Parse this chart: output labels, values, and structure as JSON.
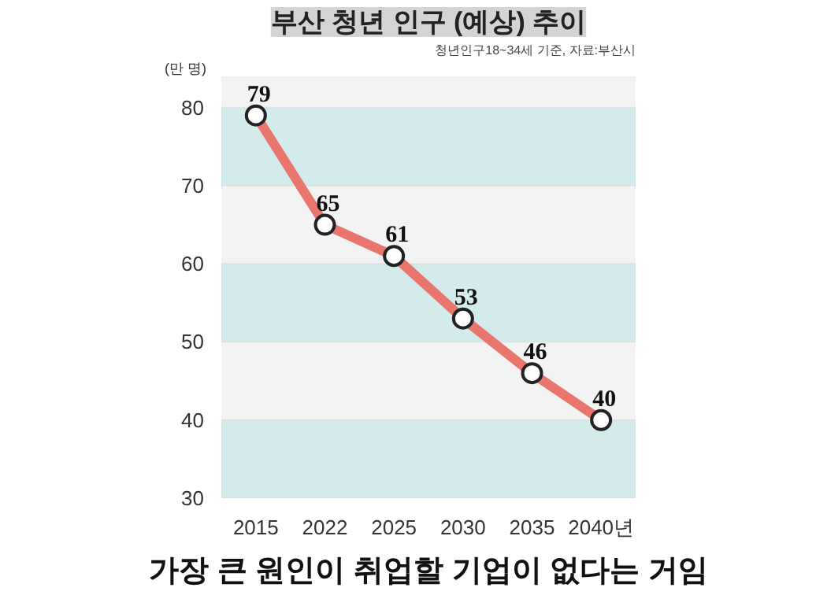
{
  "chart_data": {
    "type": "line",
    "title": "부산 청년 인구 (예상) 추이",
    "ylabel": "(만 명)",
    "annotations": [
      "청년인구18~34세 기준, 자료:부산시",
      "가장 큰 원인이 취업할 기업이 없다는 거임"
    ],
    "categories": [
      "2015",
      "2022",
      "2025",
      "2030",
      "2035",
      "2040년"
    ],
    "series": [
      {
        "color": "#e8766c",
        "values": [
          79,
          65,
          61,
          53,
          46,
          40
        ]
      }
    ],
    "ylim": [
      30,
      84
    ],
    "yticks": [
      30,
      40,
      50,
      60,
      70,
      80
    ],
    "bands": [
      {
        "axis": "y",
        "from": 30,
        "to": 40,
        "color": "#d4ebeb"
      },
      {
        "axis": "y",
        "from": 50,
        "to": 60,
        "color": "#d4ebeb"
      },
      {
        "axis": "y",
        "from": 70,
        "to": 80,
        "color": "#d4ebeb"
      }
    ],
    "marker": "circle",
    "data_labels": true,
    "grid": false
  }
}
